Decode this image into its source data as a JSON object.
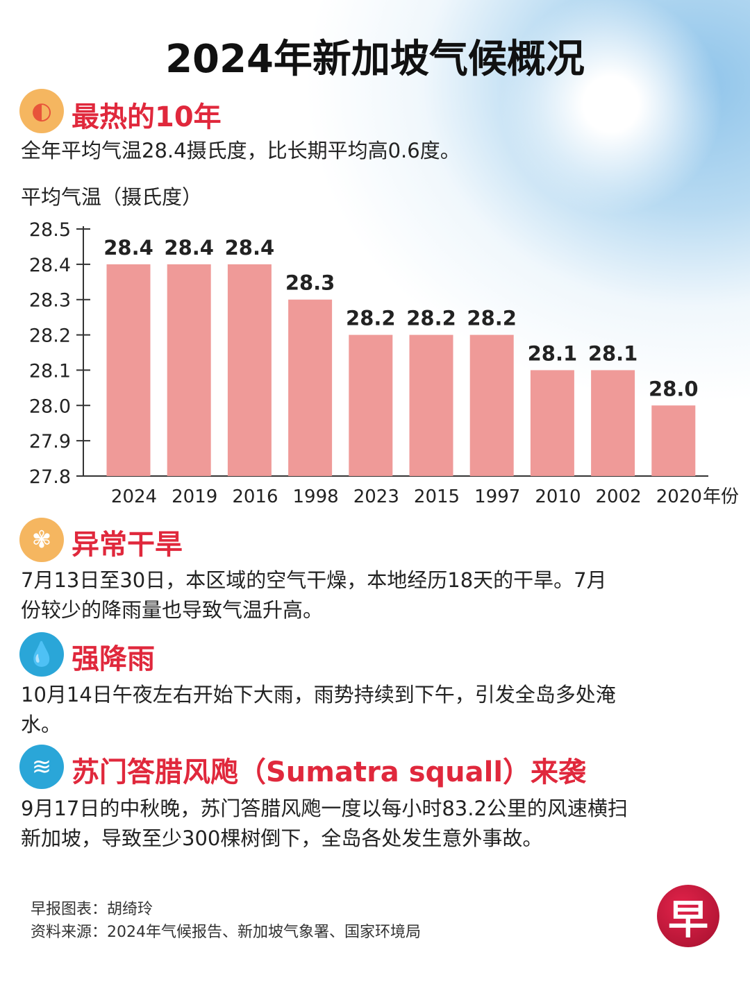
{
  "title": "2024年新加坡气候概况",
  "sections": [
    {
      "icon": "sun-icon",
      "heading": "最热的10年",
      "text": [
        "全年平均气温28.4摄氏度，比长期平均高0.6度。"
      ]
    },
    {
      "icon": "dry-tree-icon",
      "heading": "异常干旱",
      "text": [
        "7月13日至30日，本区域的空气干燥，本地经历18天的干旱。7月",
        "份较少的降雨量也导致气温升高。"
      ]
    },
    {
      "icon": "rain-drops-icon",
      "heading": "强降雨",
      "text": [
        "10月14日午夜左右开始下大雨，雨势持续到下午，引发全岛多处淹",
        "水。"
      ]
    },
    {
      "icon": "wind-icon",
      "heading": "苏门答腊风飑（Sumatra squall）来袭",
      "text": [
        "9月17日的中秋晚，苏门答腊风飑一度以每小时83.2公里的风速横扫",
        "新加坡，导致至少300棵树倒下，全岛各处发生意外事故。"
      ]
    }
  ],
  "chart_data": {
    "type": "bar",
    "ylabel": "平均气温（摄氏度）",
    "xlabel": "年份",
    "categories": [
      "2024",
      "2019",
      "2016",
      "1998",
      "2023",
      "2015",
      "1997",
      "2010",
      "2002",
      "2020"
    ],
    "values": [
      28.4,
      28.4,
      28.4,
      28.3,
      28.2,
      28.2,
      28.2,
      28.1,
      28.1,
      28.0
    ],
    "data_labels": [
      "28.4",
      "28.4",
      "28.4",
      "28.3",
      "28.2",
      "28.2",
      "28.2",
      "28.1",
      "28.1",
      "28.0"
    ],
    "ylim": [
      27.8,
      28.5
    ],
    "yticks": [
      "27.8",
      "27.9",
      "28.0",
      "28.1",
      "28.2",
      "28.3",
      "28.4",
      "28.5"
    ],
    "bar_color": "#ef9a98",
    "grid": false
  },
  "footer": {
    "credit": "早报图表：胡绮玲",
    "source": "资料来源：2024年气候报告、新加坡气象署、国家环境局",
    "logo": "早"
  },
  "colors": {
    "heading": "#e0283c"
  }
}
